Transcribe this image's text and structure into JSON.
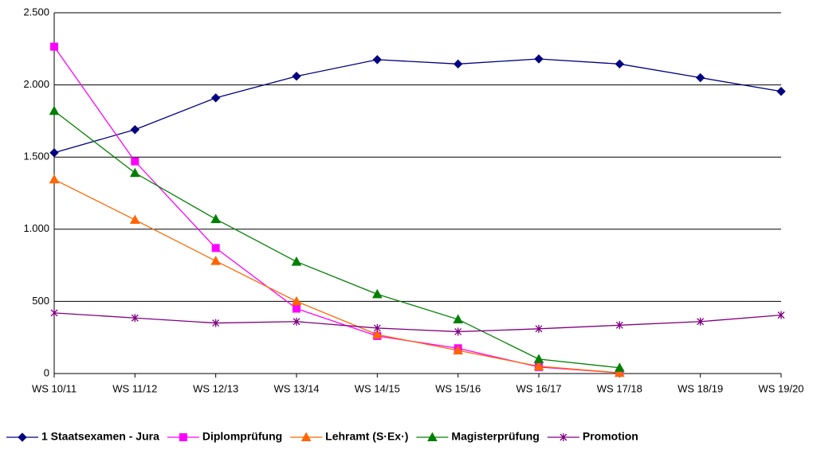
{
  "chart_data": {
    "type": "line",
    "categories": [
      "WS 10/11",
      "WS 11/12",
      "WS 12/13",
      "WS 13/14",
      "WS 14/15",
      "WS 15/16",
      "WS 16/17",
      "WS 17/18",
      "WS 18/19",
      "WS 19/20"
    ],
    "series": [
      {
        "name": "1 Staatsexamen - Jura",
        "color": "#000080",
        "marker": "diamond",
        "values": [
          1530,
          1690,
          1910,
          2060,
          2175,
          2145,
          2180,
          2145,
          2050,
          1955
        ]
      },
      {
        "name": "Diplomprüfung",
        "color": "#ff00ff",
        "marker": "square",
        "values": [
          2265,
          1470,
          870,
          450,
          260,
          175,
          45,
          5,
          null,
          null
        ]
      },
      {
        "name": "Lehramt (S·Ex·)",
        "color": "#ff6600",
        "marker": "triangle",
        "values": [
          1345,
          1065,
          780,
          500,
          270,
          160,
          50,
          5,
          null,
          null
        ]
      },
      {
        "name": "Magisterprüfung",
        "color": "#008000",
        "marker": "triangle",
        "values": [
          1820,
          1390,
          1070,
          775,
          550,
          375,
          100,
          40,
          null,
          null
        ]
      },
      {
        "name": "Promotion",
        "color": "#800080",
        "marker": "asterisk",
        "values": [
          420,
          385,
          350,
          360,
          315,
          290,
          310,
          335,
          360,
          405
        ]
      }
    ],
    "ylim": [
      0,
      2500
    ],
    "yticks": [
      0,
      500,
      {
        "value": 1000,
        "label": "1.000"
      },
      {
        "value": 1500,
        "label": "1.500"
      },
      {
        "value": 2000,
        "label": "2.000"
      },
      {
        "value": 2500,
        "label": "2.500"
      }
    ],
    "grid": true,
    "legend": "bottom"
  }
}
